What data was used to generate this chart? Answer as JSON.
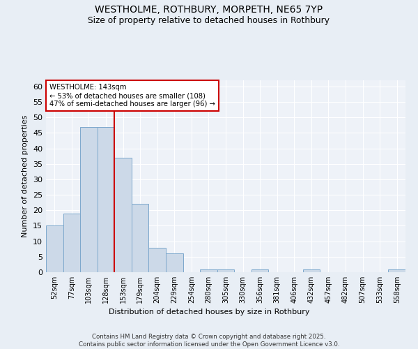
{
  "title": "WESTHOLME, ROTHBURY, MORPETH, NE65 7YP",
  "subtitle": "Size of property relative to detached houses in Rothbury",
  "xlabel": "Distribution of detached houses by size in Rothbury",
  "ylabel": "Number of detached properties",
  "bar_labels": [
    "52sqm",
    "77sqm",
    "103sqm",
    "128sqm",
    "153sqm",
    "179sqm",
    "204sqm",
    "229sqm",
    "254sqm",
    "280sqm",
    "305sqm",
    "330sqm",
    "356sqm",
    "381sqm",
    "406sqm",
    "432sqm",
    "457sqm",
    "482sqm",
    "507sqm",
    "533sqm",
    "558sqm"
  ],
  "bar_values": [
    15,
    19,
    47,
    47,
    37,
    22,
    8,
    6,
    0,
    1,
    1,
    0,
    1,
    0,
    0,
    1,
    0,
    0,
    0,
    0,
    1
  ],
  "bar_color": "#ccd9e8",
  "bar_edge_color": "#7da8cc",
  "ylim": [
    0,
    62
  ],
  "yticks": [
    0,
    5,
    10,
    15,
    20,
    25,
    30,
    35,
    40,
    45,
    50,
    55,
    60
  ],
  "vline_x": 3.5,
  "vline_color": "#cc0000",
  "annotation_text": "WESTHOLME: 143sqm\n← 53% of detached houses are smaller (108)\n47% of semi-detached houses are larger (96) →",
  "annotation_box_color": "#cc0000",
  "footer_text": "Contains HM Land Registry data © Crown copyright and database right 2025.\nContains public sector information licensed under the Open Government Licence v3.0.",
  "background_color": "#e8eef5",
  "plot_bg_color": "#eef2f8"
}
